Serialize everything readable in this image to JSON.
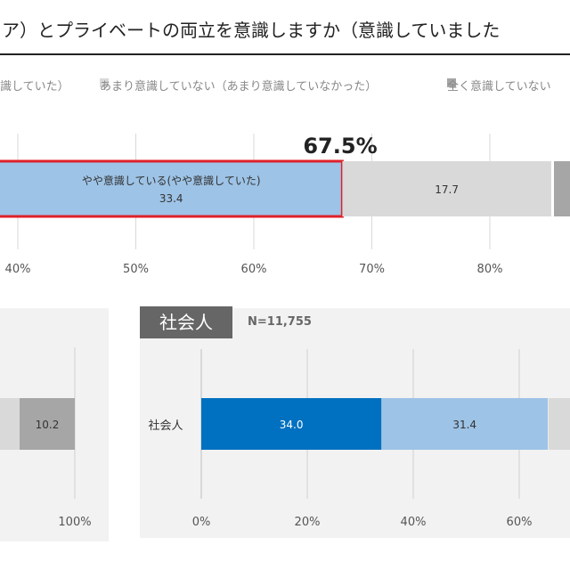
{
  "title": "ア）とプライベートの両立を意識しますか（意識していました",
  "legend": {
    "items": [
      {
        "label": "識していた）",
        "color": "#ffffff"
      },
      {
        "label": "あまり意識していない（あまり意識していなかった）",
        "color": "#d9d9d9"
      },
      {
        "label": "全く意識していない",
        "color": "#a6a6a6"
      }
    ]
  },
  "chart_data": [
    {
      "type": "bar",
      "orientation": "horizontal",
      "stacked": true,
      "annotation": "67.5%",
      "x_ticks": [
        "40%",
        "50%",
        "60%",
        "70%",
        "80%"
      ],
      "segments": [
        {
          "label": "やや意識している(やや意識していた)",
          "value": 33.4,
          "start": 34.1,
          "color": "#9dc3e6",
          "highlight": true
        },
        {
          "label": "",
          "value": 17.7,
          "start": 67.5,
          "color": "#d9d9d9"
        }
      ]
    },
    {
      "type": "bar",
      "orientation": "horizontal",
      "stacked": true,
      "x_ticks": [
        "100%"
      ],
      "segments": [
        {
          "value": 10.2,
          "start": 89.8,
          "color": "#a6a6a6"
        }
      ]
    },
    {
      "type": "bar",
      "orientation": "horizontal",
      "stacked": true,
      "panel_title": "社会人",
      "n_label": "N=11,755",
      "category": "社会人",
      "x_ticks": [
        "0%",
        "20%",
        "40%",
        "60%"
      ],
      "segments": [
        {
          "value": 34.0,
          "start": 0,
          "color": "#0070c0"
        },
        {
          "value": 31.4,
          "start": 34.0,
          "color": "#9dc3e6"
        }
      ]
    }
  ]
}
